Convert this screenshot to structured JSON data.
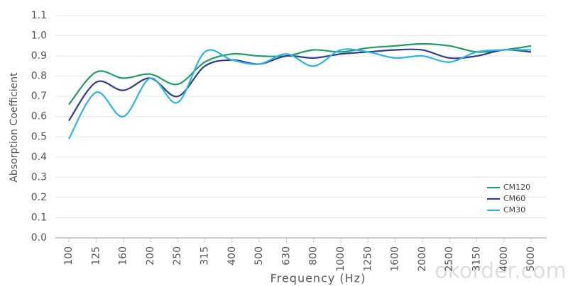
{
  "chart_data": {
    "type": "line",
    "y_label": "Absorption Coefficient",
    "x_label": "Frequency (Hz)",
    "watermark": "okorder.com",
    "categories": [
      "100",
      "125",
      "160",
      "200",
      "250",
      "315",
      "400",
      "500",
      "630",
      "800",
      "1000",
      "1250",
      "1600",
      "2000",
      "2500",
      "3150",
      "4000",
      "5000"
    ],
    "series": [
      {
        "name": "CM120",
        "color": "#1f9e62",
        "values": [
          0.66,
          0.82,
          0.79,
          0.81,
          0.76,
          0.87,
          0.91,
          0.9,
          0.9,
          0.93,
          0.92,
          0.94,
          0.95,
          0.96,
          0.95,
          0.92,
          0.93,
          0.95
        ]
      },
      {
        "name": "CM60",
        "color": "#2e3b8e",
        "values": [
          0.58,
          0.77,
          0.73,
          0.79,
          0.7,
          0.85,
          0.88,
          0.86,
          0.9,
          0.89,
          0.91,
          0.92,
          0.93,
          0.93,
          0.89,
          0.9,
          0.93,
          0.92
        ]
      },
      {
        "name": "CM30",
        "color": "#2cb4e6",
        "values": [
          0.49,
          0.72,
          0.6,
          0.79,
          0.67,
          0.92,
          0.88,
          0.86,
          0.91,
          0.85,
          0.93,
          0.92,
          0.89,
          0.9,
          0.87,
          0.92,
          0.93,
          0.93
        ]
      }
    ],
    "ylim": [
      0,
      1.1
    ],
    "yticks": [
      {
        "value": 0,
        "label": "0.0"
      },
      0.1,
      0.2,
      0.3,
      0.4,
      0.5,
      0.6,
      0.7,
      0.8,
      0.9,
      {
        "value": 1,
        "label": "1.0"
      },
      1.1
    ],
    "grid": true,
    "legend": "lower-right"
  }
}
